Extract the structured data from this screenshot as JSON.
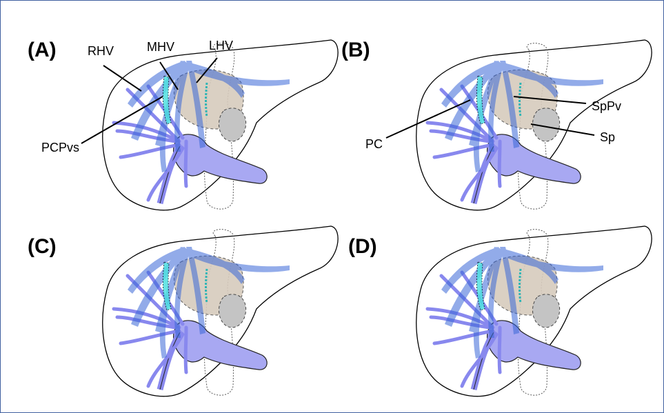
{
  "panels": [
    {
      "label": "(A)",
      "annotations": [
        "RHV",
        "MHV",
        "LHV",
        "PCPvs"
      ]
    },
    {
      "label": "(B)",
      "annotations": [
        "SpPv",
        "Sp",
        "PC"
      ]
    },
    {
      "label": "(C)"
    },
    {
      "label": "(D)"
    }
  ]
}
